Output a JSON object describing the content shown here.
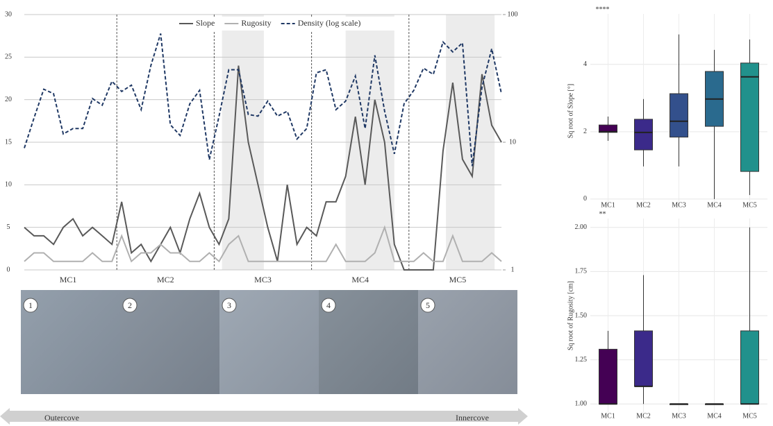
{
  "chart_data": [
    {
      "type": "line",
      "categories": [
        null,
        null,
        null,
        null,
        null,
        null,
        null,
        null,
        null,
        null,
        null,
        null,
        null,
        null,
        null,
        null,
        null,
        null,
        null,
        null,
        null,
        null,
        null,
        null,
        null,
        null,
        null,
        null,
        null,
        null,
        null,
        null,
        null,
        null,
        null,
        null,
        null,
        null,
        null,
        null,
        null,
        null,
        null,
        null,
        null,
        null,
        null,
        null,
        null,
        null
      ],
      "group_labels": [
        "MC1",
        "MC2",
        "MC3",
        "MC4",
        "MC5"
      ],
      "ylim": [
        0,
        30
      ],
      "yticks": [
        0,
        5,
        10,
        15,
        20,
        25,
        30
      ],
      "y2lim": [
        1,
        100
      ],
      "y2ticks": [
        1,
        10,
        100
      ],
      "y2log": true,
      "grid": true,
      "series": [
        {
          "name": "Slope",
          "color": "#595959",
          "style": "solid",
          "values": [
            5,
            4,
            4,
            3,
            5,
            6,
            4,
            5,
            4,
            3,
            8,
            2,
            3,
            1,
            3,
            5,
            2,
            6,
            9,
            5,
            3,
            6,
            24,
            15,
            10,
            5,
            1,
            10,
            3,
            5,
            4,
            8,
            8,
            11,
            18,
            10,
            20,
            15,
            3,
            0,
            0,
            0,
            0,
            14,
            22,
            13,
            11,
            23,
            17,
            15
          ]
        },
        {
          "name": "Rugosity",
          "color": "#b0b0b0",
          "style": "solid",
          "values": [
            1,
            2,
            2,
            1,
            1,
            1,
            1,
            2,
            1,
            1,
            4,
            1,
            2,
            2,
            3,
            2,
            2,
            1,
            1,
            2,
            1,
            3,
            4,
            1,
            1,
            1,
            1,
            1,
            1,
            1,
            1,
            1,
            3,
            1,
            1,
            1,
            2,
            5,
            1,
            1,
            1,
            2,
            1,
            1,
            4,
            1,
            1,
            1,
            2,
            1
          ]
        },
        {
          "name": "Density (log scale)",
          "color": "#1f3864",
          "style": "dashed",
          "axis": "y2",
          "values": [
            9,
            15.5,
            26,
            24,
            11.6,
            12.8,
            12.8,
            22,
            19.5,
            30,
            25,
            28,
            18,
            40,
            71,
            13.7,
            11.3,
            20,
            25.5,
            7.3,
            16,
            37,
            37,
            16.5,
            16,
            21,
            16,
            17.5,
            10.6,
            12.8,
            35,
            37,
            18,
            21,
            33,
            12.8,
            48,
            17.5,
            8.1,
            20,
            25.5,
            38,
            34,
            61,
            51,
            60,
            6.5,
            27,
            54,
            24
          ]
        }
      ]
    },
    {
      "type": "box",
      "annotation": "****",
      "ylabel": "Sq root of Slope [°]",
      "categories": [
        "MC1",
        "MC2",
        "MC3",
        "MC4",
        "MC5"
      ],
      "colors": [
        "#440154",
        "#3b2a8a",
        "#33508c",
        "#2a6a8e",
        "#21918c"
      ],
      "ylim": [
        -0.27,
        5.5
      ],
      "yticks": [
        0,
        2,
        4
      ],
      "boxes": [
        {
          "min": 1.73,
          "q1": 1.98,
          "median": 2.0,
          "q3": 2.2,
          "max": 2.45
        },
        {
          "min": 0.97,
          "q1": 1.46,
          "median": 1.98,
          "q3": 2.37,
          "max": 2.97
        },
        {
          "min": 0.97,
          "q1": 1.84,
          "median": 2.31,
          "q3": 3.13,
          "max": 4.89
        },
        {
          "min": 0,
          "q1": 2.16,
          "median": 2.97,
          "q3": 3.79,
          "max": 4.43
        },
        {
          "min": 0.12,
          "q1": 0.82,
          "median": 3.63,
          "q3": 4.04,
          "max": 4.74
        }
      ]
    },
    {
      "type": "box",
      "annotation": "**",
      "ylabel": "Sq root of Rugosity [cm]",
      "categories": [
        "MC1",
        "MC2",
        "MC3",
        "MC4",
        "MC5"
      ],
      "colors": [
        "#440154",
        "#3b2a8a",
        "#33508c",
        "#2a6a8e",
        "#21918c"
      ],
      "ylim": [
        0.95,
        2.05
      ],
      "yticks": [
        {
          "value": 1,
          "label": "1.00"
        },
        {
          "value": 1.25,
          "label": "1.25"
        },
        {
          "value": 1.5,
          "label": "1.50"
        },
        {
          "value": 1.75,
          "label": "1.75"
        },
        {
          "value": 2,
          "label": "2.00"
        }
      ],
      "boxes": [
        {
          "min": 1.0,
          "q1": 1.0,
          "median": 1.0,
          "q3": 1.31,
          "max": 1.414
        },
        {
          "min": 1.0,
          "q1": 1.1,
          "median": 1.1,
          "q3": 1.414,
          "max": 1.73
        },
        {
          "min": 1.0,
          "q1": 1.0,
          "median": 1.0,
          "q3": 1.0,
          "max": 1.0
        },
        {
          "min": 1.0,
          "q1": 1.0,
          "median": 1.0,
          "q3": 1.0,
          "max": 1.0
        },
        {
          "min": 1.0,
          "q1": 1.0,
          "median": 1.0,
          "q3": 1.414,
          "max": 2.0
        }
      ]
    }
  ],
  "photo_strip": {
    "labels": [
      "1",
      "2",
      "3",
      "4",
      "5"
    ],
    "left": "Outercove",
    "right": "Innercove"
  }
}
